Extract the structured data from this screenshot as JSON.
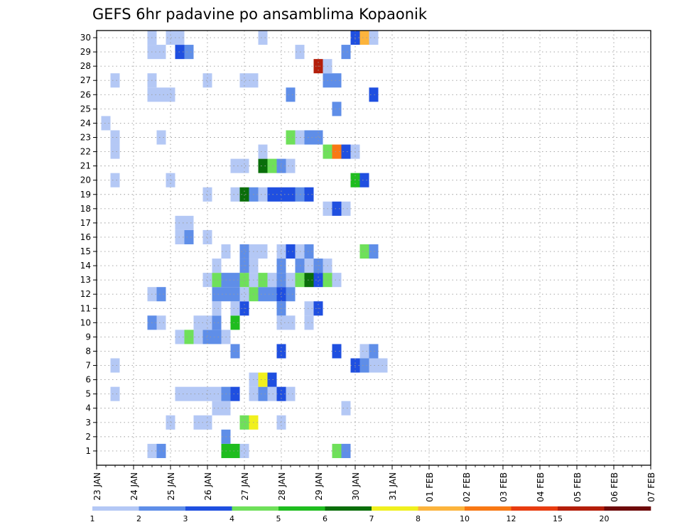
{
  "chart_data": {
    "type": "heatmap",
    "title": "GEFS 6hr padavine po ansamblima Kopaonik",
    "y_ticks": [
      "1",
      "2",
      "3",
      "4",
      "5",
      "6",
      "7",
      "8",
      "9",
      "10",
      "11",
      "12",
      "13",
      "14",
      "15",
      "16",
      "17",
      "18",
      "19",
      "20",
      "21",
      "22",
      "23",
      "24",
      "25",
      "26",
      "27",
      "28",
      "29",
      "30"
    ],
    "x_ticks": [
      "23 JAN",
      "24 JAN",
      "25 JAN",
      "26 JAN",
      "27 JAN",
      "28 JAN",
      "29 JAN",
      "30 JAN",
      "31 JAN",
      "01 FEB",
      "02 FEB",
      "03 FEB",
      "04 FEB",
      "05 FEB",
      "06 FEB",
      "07 FEB"
    ],
    "x_units": "6-hour steps from 23 JAN 00",
    "y_units": "ensemble member",
    "grid": true,
    "colorbar": {
      "labels": [
        "1",
        "2",
        "3",
        "4",
        "5",
        "6",
        "7",
        "8",
        "10",
        "12",
        "15",
        "20"
      ],
      "colors": [
        "#b4c8f5",
        "#5f8ee8",
        "#1f4fe0",
        "#6fe05a",
        "#1fbd1f",
        "#0a6e0a",
        "#f0f01e",
        "#fcb43c",
        "#f87814",
        "#e83c10",
        "#b41e0a",
        "#6e0a0a"
      ]
    },
    "cells": [
      [
        1,
        6,
        0
      ],
      [
        1,
        7,
        1
      ],
      [
        1,
        14,
        4
      ],
      [
        1,
        15,
        4
      ],
      [
        1,
        16,
        0
      ],
      [
        1,
        26,
        3
      ],
      [
        1,
        27,
        1
      ],
      [
        2,
        14,
        1
      ],
      [
        3,
        8,
        0
      ],
      [
        3,
        11,
        0
      ],
      [
        3,
        12,
        0
      ],
      [
        3,
        16,
        3
      ],
      [
        3,
        17,
        6
      ],
      [
        3,
        20,
        0
      ],
      [
        4,
        13,
        0
      ],
      [
        4,
        14,
        0
      ],
      [
        4,
        27,
        0
      ],
      [
        5,
        2,
        0
      ],
      [
        5,
        9,
        0
      ],
      [
        5,
        10,
        0
      ],
      [
        5,
        11,
        0
      ],
      [
        5,
        12,
        0
      ],
      [
        5,
        13,
        0
      ],
      [
        5,
        14,
        1
      ],
      [
        5,
        15,
        2
      ],
      [
        5,
        17,
        0
      ],
      [
        5,
        18,
        1
      ],
      [
        5,
        19,
        0
      ],
      [
        5,
        20,
        2
      ],
      [
        5,
        21,
        0
      ],
      [
        6,
        17,
        0
      ],
      [
        6,
        18,
        6
      ],
      [
        6,
        19,
        2
      ],
      [
        7,
        2,
        0
      ],
      [
        7,
        28,
        2
      ],
      [
        7,
        29,
        1
      ],
      [
        7,
        30,
        0
      ],
      [
        7,
        31,
        0
      ],
      [
        8,
        15,
        1
      ],
      [
        8,
        20,
        2
      ],
      [
        8,
        26,
        2
      ],
      [
        8,
        29,
        0
      ],
      [
        8,
        30,
        1
      ],
      [
        9,
        9,
        0
      ],
      [
        9,
        10,
        3
      ],
      [
        9,
        11,
        0
      ],
      [
        9,
        12,
        1
      ],
      [
        9,
        13,
        1
      ],
      [
        9,
        14,
        0
      ],
      [
        10,
        6,
        1
      ],
      [
        10,
        7,
        0
      ],
      [
        10,
        11,
        0
      ],
      [
        10,
        12,
        0
      ],
      [
        10,
        13,
        1
      ],
      [
        10,
        15,
        4
      ],
      [
        10,
        20,
        0
      ],
      [
        10,
        21,
        0
      ],
      [
        10,
        23,
        0
      ],
      [
        11,
        13,
        0
      ],
      [
        11,
        15,
        0
      ],
      [
        11,
        16,
        2
      ],
      [
        11,
        20,
        1
      ],
      [
        11,
        23,
        0
      ],
      [
        11,
        24,
        2
      ],
      [
        12,
        6,
        0
      ],
      [
        12,
        7,
        1
      ],
      [
        12,
        13,
        1
      ],
      [
        12,
        14,
        1
      ],
      [
        12,
        15,
        1
      ],
      [
        12,
        16,
        0
      ],
      [
        12,
        17,
        3
      ],
      [
        12,
        18,
        1
      ],
      [
        12,
        19,
        1
      ],
      [
        12,
        20,
        2
      ],
      [
        12,
        21,
        1
      ],
      [
        13,
        12,
        0
      ],
      [
        13,
        13,
        3
      ],
      [
        13,
        14,
        1
      ],
      [
        13,
        15,
        1
      ],
      [
        13,
        16,
        3
      ],
      [
        13,
        17,
        0
      ],
      [
        13,
        18,
        3
      ],
      [
        13,
        19,
        0
      ],
      [
        13,
        20,
        1
      ],
      [
        13,
        21,
        0
      ],
      [
        13,
        22,
        3
      ],
      [
        13,
        23,
        5
      ],
      [
        13,
        24,
        2
      ],
      [
        13,
        25,
        3
      ],
      [
        13,
        26,
        0
      ],
      [
        14,
        13,
        0
      ],
      [
        14,
        16,
        1
      ],
      [
        14,
        17,
        0
      ],
      [
        14,
        20,
        1
      ],
      [
        14,
        22,
        1
      ],
      [
        14,
        23,
        0
      ],
      [
        14,
        24,
        1
      ],
      [
        14,
        25,
        0
      ],
      [
        15,
        14,
        0
      ],
      [
        15,
        16,
        1
      ],
      [
        15,
        17,
        0
      ],
      [
        15,
        18,
        0
      ],
      [
        15,
        20,
        0
      ],
      [
        15,
        21,
        2
      ],
      [
        15,
        22,
        0
      ],
      [
        15,
        23,
        1
      ],
      [
        15,
        29,
        3
      ],
      [
        15,
        30,
        1
      ],
      [
        16,
        9,
        0
      ],
      [
        16,
        10,
        1
      ],
      [
        16,
        12,
        0
      ],
      [
        17,
        9,
        0
      ],
      [
        17,
        10,
        0
      ],
      [
        18,
        25,
        0
      ],
      [
        18,
        26,
        2
      ],
      [
        18,
        27,
        0
      ],
      [
        19,
        12,
        0
      ],
      [
        19,
        15,
        0
      ],
      [
        19,
        16,
        5
      ],
      [
        19,
        17,
        1
      ],
      [
        19,
        18,
        0
      ],
      [
        19,
        19,
        2
      ],
      [
        19,
        20,
        2
      ],
      [
        19,
        21,
        2
      ],
      [
        19,
        22,
        1
      ],
      [
        19,
        23,
        2
      ],
      [
        20,
        2,
        0
      ],
      [
        20,
        8,
        0
      ],
      [
        20,
        28,
        4
      ],
      [
        20,
        29,
        2
      ],
      [
        21,
        15,
        0
      ],
      [
        21,
        16,
        0
      ],
      [
        21,
        18,
        5
      ],
      [
        21,
        19,
        3
      ],
      [
        21,
        20,
        1
      ],
      [
        21,
        21,
        0
      ],
      [
        22,
        2,
        0
      ],
      [
        22,
        18,
        0
      ],
      [
        22,
        25,
        3
      ],
      [
        22,
        26,
        8
      ],
      [
        22,
        27,
        2
      ],
      [
        22,
        28,
        0
      ],
      [
        23,
        2,
        0
      ],
      [
        23,
        7,
        0
      ],
      [
        23,
        21,
        3
      ],
      [
        23,
        22,
        0
      ],
      [
        23,
        23,
        1
      ],
      [
        23,
        24,
        1
      ],
      [
        24,
        1,
        0
      ],
      [
        25,
        26,
        1
      ],
      [
        26,
        6,
        0
      ],
      [
        26,
        7,
        0
      ],
      [
        26,
        8,
        0
      ],
      [
        26,
        21,
        1
      ],
      [
        26,
        30,
        2
      ],
      [
        27,
        2,
        0
      ],
      [
        27,
        6,
        0
      ],
      [
        27,
        12,
        0
      ],
      [
        27,
        16,
        0
      ],
      [
        27,
        17,
        0
      ],
      [
        27,
        25,
        1
      ],
      [
        27,
        26,
        1
      ],
      [
        28,
        24,
        10
      ],
      [
        28,
        25,
        0
      ],
      [
        29,
        6,
        0
      ],
      [
        29,
        7,
        0
      ],
      [
        29,
        9,
        2
      ],
      [
        29,
        10,
        1
      ],
      [
        29,
        22,
        0
      ],
      [
        29,
        27,
        1
      ],
      [
        30,
        6,
        0
      ],
      [
        30,
        8,
        0
      ],
      [
        30,
        9,
        0
      ],
      [
        30,
        18,
        0
      ],
      [
        30,
        28,
        2
      ],
      [
        30,
        29,
        7
      ],
      [
        30,
        30,
        0
      ]
    ]
  }
}
